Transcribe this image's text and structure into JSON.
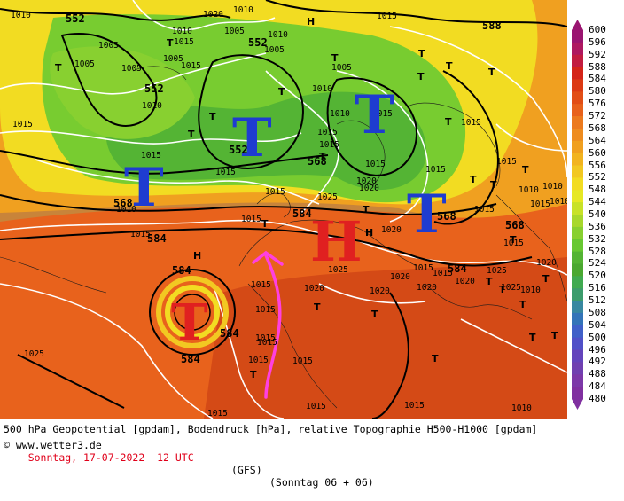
{
  "colors": {
    "ocean": "#c8843a",
    "warm_air": "#e8621c",
    "hot_air": "#d44a16",
    "mid_air": "#f0a020",
    "yellow_air": "#f2dc22",
    "green_air": "#78cc30",
    "deep_green": "#54b434",
    "isobar": "#ffffff",
    "contour": "#000000",
    "low_marker": "#1e3cd0",
    "high_marker": "#e02020",
    "arrow": "#ff40e0"
  },
  "map": {
    "contour_labels": [
      "552",
      "552",
      "552",
      "552",
      "568",
      "568",
      "568",
      "584",
      "584",
      "584",
      "584",
      "584",
      "584",
      "568",
      "588"
    ],
    "isobar_labels": [
      "1020",
      "1010",
      "1010",
      "1015",
      "1015",
      "1010",
      "1005",
      "1005",
      "1005",
      "1005",
      "1005",
      "1010",
      "1015",
      "1010",
      "1010",
      "1015",
      "1015",
      "1015",
      "1020",
      "1015",
      "1015",
      "1010",
      "1010",
      "1015",
      "1015",
      "1025",
      "1020",
      "1015",
      "1015",
      "1025",
      "1015",
      "1020",
      "1020",
      "1015",
      "1015",
      "1015",
      "1020",
      "1015",
      "1010",
      "1015",
      "1025",
      "1015",
      "1015",
      "1010",
      "1025",
      "1025",
      "1015",
      "1015",
      "1015",
      "1015",
      "1005",
      "1010",
      "1005",
      "1020",
      "1015",
      "1015",
      "1020",
      "1020",
      "1015",
      "1015",
      "1015",
      "1015",
      "1010",
      "1010",
      "1020"
    ],
    "lows": [
      "T",
      "T",
      "T",
      "T",
      "T"
    ],
    "highs": [
      "H"
    ],
    "small_lows": [
      "T",
      "T",
      "T",
      "T",
      "T",
      "T",
      "T",
      "T",
      "T",
      "T",
      "T",
      "T",
      "T",
      "T",
      "T",
      "T",
      "T",
      "T",
      "T",
      "T",
      "T",
      "T",
      "T",
      "T",
      "T",
      "T",
      "T",
      "T"
    ],
    "small_highs": [
      "H",
      "H",
      "H"
    ]
  },
  "legend": {
    "levels": [
      "600",
      "596",
      "592",
      "588",
      "584",
      "580",
      "576",
      "572",
      "568",
      "564",
      "560",
      "556",
      "552",
      "548",
      "544",
      "540",
      "536",
      "532",
      "528",
      "524",
      "520",
      "516",
      "512",
      "508",
      "504",
      "500",
      "496",
      "492",
      "488",
      "484",
      "480"
    ],
    "colors": [
      "#9a1470",
      "#ae1860",
      "#c21c40",
      "#d42418",
      "#dc3a14",
      "#e24e16",
      "#e8621c",
      "#ec7a1e",
      "#ee8c20",
      "#f0a020",
      "#f2b420",
      "#f2c822",
      "#f2dc22",
      "#e6e824",
      "#c8e228",
      "#a8d82c",
      "#88d030",
      "#68c832",
      "#54b434",
      "#4aa830",
      "#40aa50",
      "#3c9c6c",
      "#3888a0",
      "#3474b8",
      "#4060c8",
      "#5050c8",
      "#6444bc",
      "#7040b0",
      "#7c38a8",
      "#8030a0"
    ]
  },
  "footer": {
    "title": "500 hPa Geopotential [gpdam], Bodendruck [hPa], relative Topographie H500-H1000 [gpdam]",
    "date": "Sonntag, 17-07-2022  12 UTC",
    "model": "(GFS)",
    "run": "(Sonntag 06 + 06)",
    "credit": "© www.wetter3.de"
  }
}
